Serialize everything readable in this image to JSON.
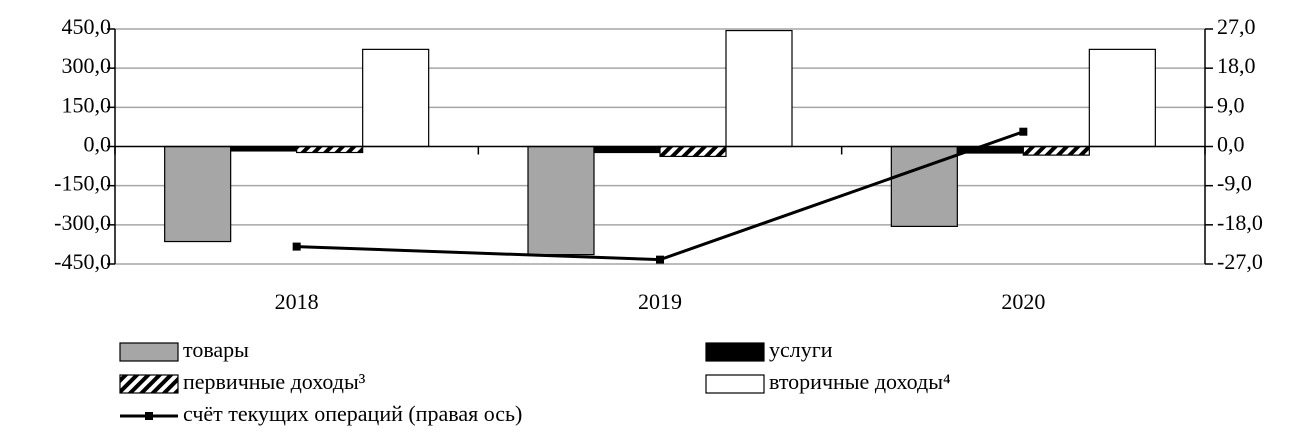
{
  "chart_data": {
    "type": "bar",
    "categories": [
      "2018",
      "2019",
      "2020"
    ],
    "series": [
      {
        "name": "товары",
        "color": "#a6a6a6",
        "values": [
          -364,
          -414,
          -306
        ]
      },
      {
        "name": "услуги",
        "color": "#000000",
        "values": [
          -17,
          -23,
          -25
        ]
      },
      {
        "name": "первичные доходы³",
        "color": "hatch",
        "values": [
          -23,
          -38,
          -33
        ]
      },
      {
        "name": "вторичные доходы⁴",
        "color": "#ffffff",
        "values": [
          372,
          444,
          372
        ]
      },
      {
        "name": "счёт текущих операций (правая ось)",
        "color": "#000000",
        "type": "line",
        "axis": "y2",
        "values": [
          -23.0,
          -26.0,
          3.4
        ]
      }
    ],
    "ylim": [
      -450,
      450
    ],
    "yticks": [
      {
        "value": 450,
        "label": "450,0"
      },
      {
        "value": 300,
        "label": "300,0"
      },
      {
        "value": 150,
        "label": "150,0"
      },
      {
        "value": 0,
        "label": "0,0"
      },
      {
        "value": -150,
        "label": "-150,0"
      },
      {
        "value": -300,
        "label": "-300,0"
      },
      {
        "value": -450,
        "label": "-450,0"
      }
    ],
    "y2lim": [
      -27,
      27
    ],
    "y2ticks": [
      {
        "value": 27,
        "label": "27,0"
      },
      {
        "value": 18,
        "label": "18,0"
      },
      {
        "value": 9,
        "label": "9,0"
      },
      {
        "value": 0,
        "label": "0,0"
      },
      {
        "value": -9,
        "label": "-9,0"
      },
      {
        "value": -18,
        "label": "-18,0"
      },
      {
        "value": -27,
        "label": "-27,0"
      }
    ],
    "grid": true
  }
}
